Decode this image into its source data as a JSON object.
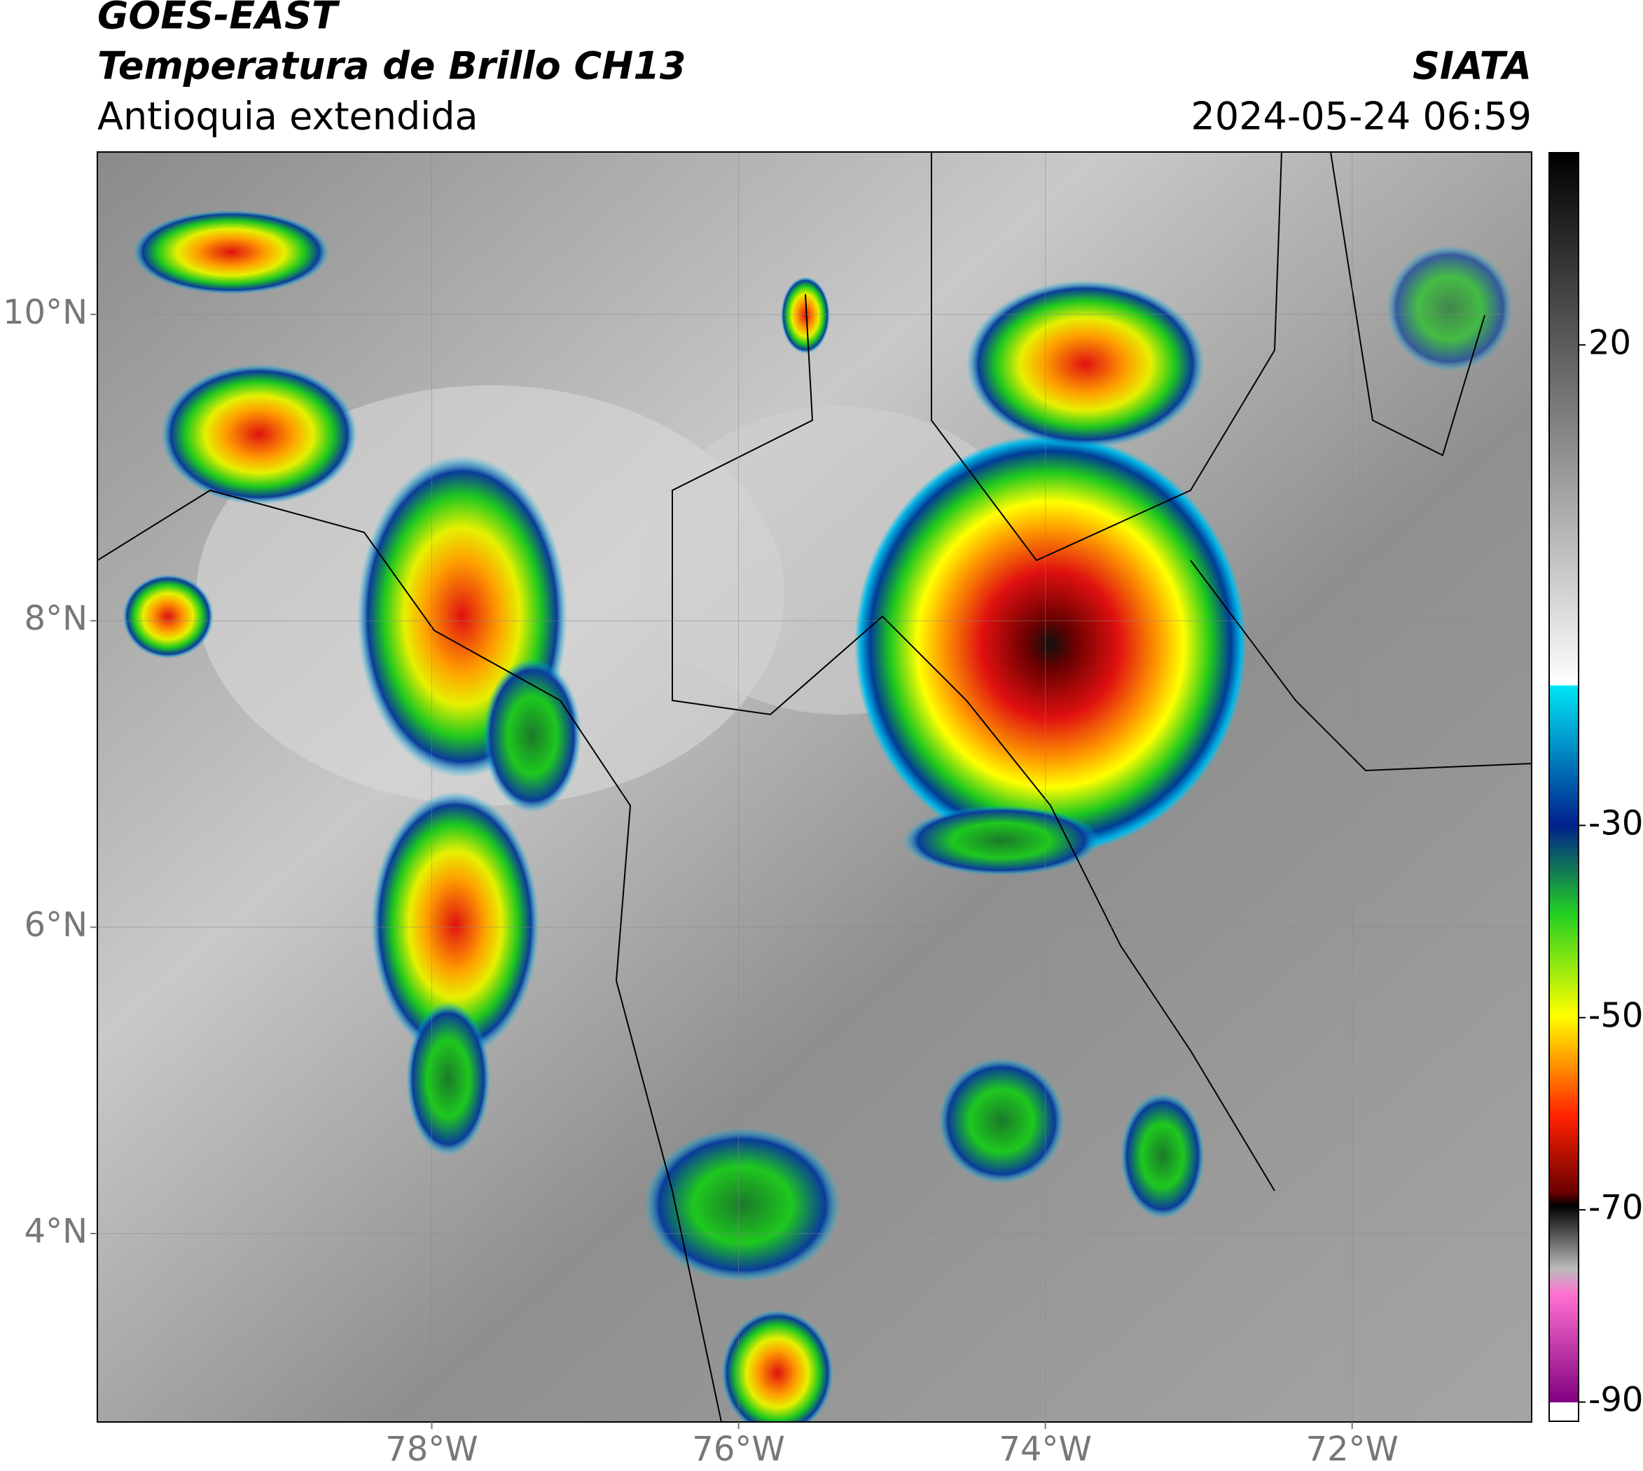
{
  "header": {
    "title": "GOES-EAST",
    "subtitle": "Temperatura de Brillo CH13",
    "region": "Antioquia extendida",
    "source": "SIATA",
    "datetime": "2024-05-24 06:59"
  },
  "map": {
    "xlim": [
      -80.18,
      -70.83
    ],
    "ylim": [
      2.77,
      11.06
    ],
    "xticks": [
      {
        "value": -78,
        "label": "78°W"
      },
      {
        "value": -76,
        "label": "76°W"
      },
      {
        "value": -74,
        "label": "74°W"
      },
      {
        "value": -72,
        "label": "72°W"
      }
    ],
    "yticks": [
      {
        "value": 4,
        "label": "4°N"
      },
      {
        "value": 6,
        "label": "6°N"
      },
      {
        "value": 8,
        "label": "8°N"
      },
      {
        "value": 10,
        "label": "10°N"
      }
    ],
    "grid": true
  },
  "colorbar": {
    "lim": [
      -92,
      40
    ],
    "ticks": [
      20,
      -30,
      -50,
      -70,
      -90
    ]
  }
}
